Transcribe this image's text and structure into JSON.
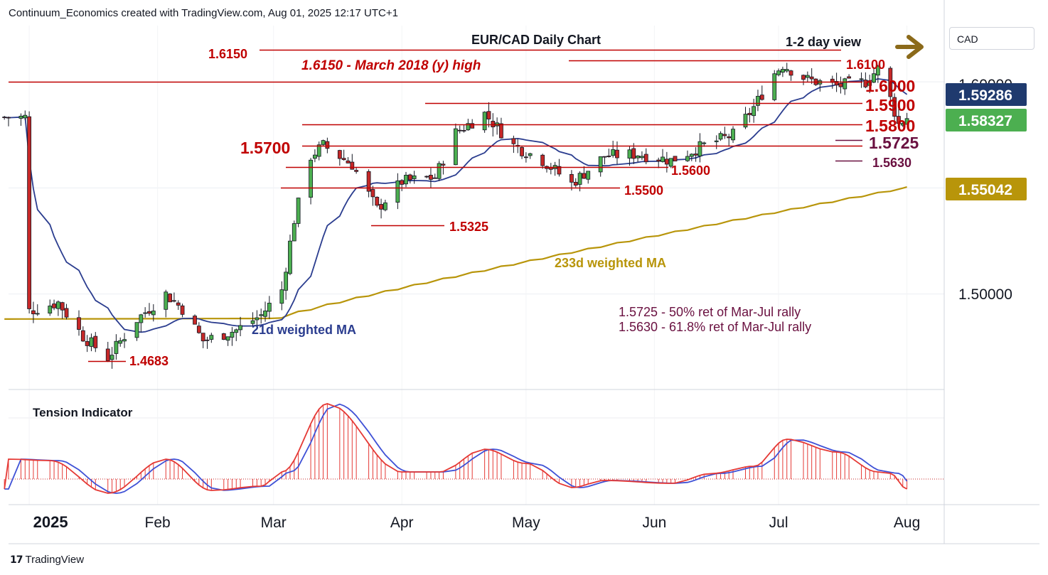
{
  "header": "Continuum_Economics created with TradingView.com, Aug 01, 2025 12:17 UTC+1",
  "footer_brand": "TradingView",
  "currency_box": "CAD",
  "chart_data": {
    "type": "candlestick",
    "title": "EUR/CAD Daily Chart",
    "view_label": "1-2 day view",
    "x_tick_labels": [
      "2025",
      "Feb",
      "Mar",
      "Apr",
      "May",
      "Jun",
      "Jul",
      "Aug"
    ],
    "y_tick_labels": [
      "1.50000",
      "1.60000"
    ],
    "ylim": [
      1.455,
      1.6265
    ],
    "price_badges": [
      {
        "label": "1.59286",
        "value": 1.59286,
        "color": "#1f3a6e"
      },
      {
        "label": "1.58327",
        "value": 1.58327,
        "color": "#4caf50"
      },
      {
        "label": "1.55042",
        "value": 1.55042,
        "color": "#b8950a"
      }
    ],
    "levels": [
      {
        "value": 1.615,
        "label": "1.6150",
        "color": "#c00000"
      },
      {
        "value": 1.61,
        "label": "1.6100",
        "color": "#c00000"
      },
      {
        "value": 1.6,
        "label": "1.6000",
        "color": "#c00000"
      },
      {
        "value": 1.59,
        "label": "1.5900",
        "color": "#c00000"
      },
      {
        "value": 1.58,
        "label": "1.5800",
        "color": "#c00000"
      },
      {
        "value": 1.5725,
        "label": "1.5725",
        "color": "#6a1040"
      },
      {
        "value": 1.57,
        "label": "1.5700",
        "color": "#c00000"
      },
      {
        "value": 1.563,
        "label": "1.5630",
        "color": "#6a1040"
      },
      {
        "value": 1.56,
        "label": "1.5600",
        "color": "#c00000"
      },
      {
        "value": 1.55,
        "label": "1.5500",
        "color": "#c00000"
      },
      {
        "value": 1.5325,
        "label": "1.5325",
        "color": "#c00000"
      },
      {
        "value": 1.4683,
        "label": "1.4683",
        "color": "#c00000"
      }
    ],
    "annotations": {
      "high_note": "1.6150 - March 2018 (y) high",
      "ret50": "1.5725 - 50% ret of Mar-Jul rally",
      "ret618": "1.5630 - 61.8% ret of Mar-Jul rally",
      "ma233": "233d weighted MA",
      "ma21": "21d weighted MA",
      "tension": "Tension Indicator"
    },
    "series": [
      {
        "name": "EUR/CAD",
        "kind": "ohlc",
        "x": [
          "2025-01-01",
          "2025-08-01"
        ],
        "key_prices": {
          "start": 1.488,
          "feb_low": 1.4683,
          "mar_high": 1.582,
          "apr_low": 1.5325,
          "jul_high": 1.61,
          "last": 1.58327
        },
        "color_up": "#4caf50",
        "color_down": "#c62828"
      },
      {
        "name": "21d weighted MA",
        "kind": "line",
        "last": 1.59286,
        "color": "#2b3d8f"
      },
      {
        "name": "233d weighted MA",
        "kind": "line",
        "last": 1.55042,
        "color": "#b8950a"
      }
    ]
  }
}
